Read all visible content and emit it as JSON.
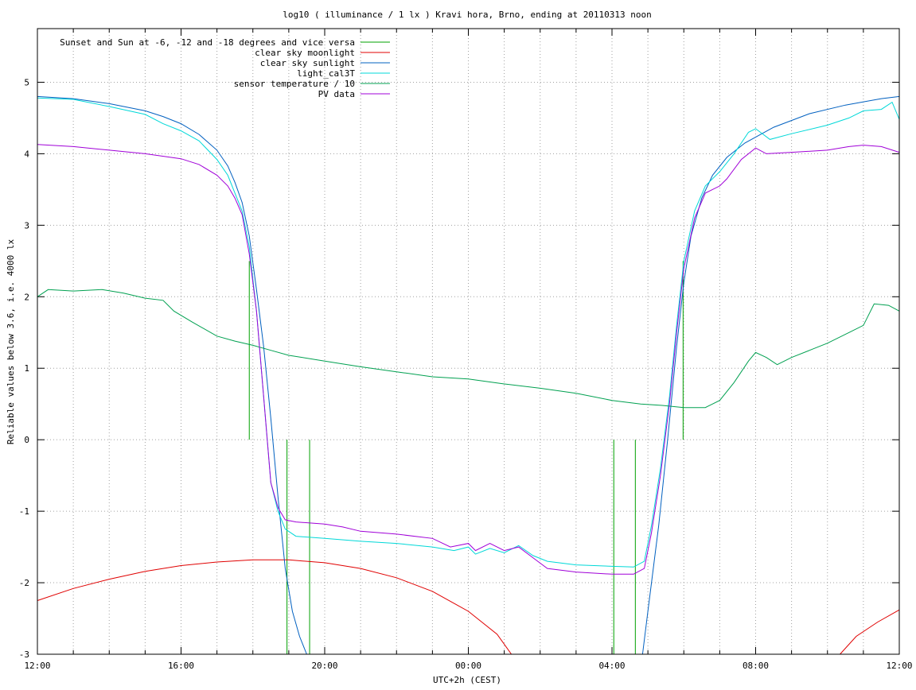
{
  "chart_data": {
    "type": "line",
    "title": "log10 ( illuminance / 1 lx ) Kravi hora, Brno, ending at 20110313 noon",
    "xlabel": "UTC+2h (CEST)",
    "ylabel": "Reliable values below 3.6, i.e. 4000 lx",
    "xlim": [
      0,
      24
    ],
    "ylim": [
      -3,
      5.75
    ],
    "grid": true,
    "legend_position": "top-left",
    "x_ticks": [
      {
        "x": 0,
        "label": "12:00"
      },
      {
        "x": 4,
        "label": "16:00"
      },
      {
        "x": 8,
        "label": "20:00"
      },
      {
        "x": 12,
        "label": "00:00"
      },
      {
        "x": 16,
        "label": "04:00"
      },
      {
        "x": 20,
        "label": "08:00"
      },
      {
        "x": 24,
        "label": "12:00"
      }
    ],
    "y_ticks": [
      {
        "y": -3,
        "label": "-3"
      },
      {
        "y": -2,
        "label": "-2"
      },
      {
        "y": -1,
        "label": "-1"
      },
      {
        "y": 0,
        "label": "0"
      },
      {
        "y": 1,
        "label": "1"
      },
      {
        "y": 2,
        "label": "2"
      },
      {
        "y": 3,
        "label": "3"
      },
      {
        "y": 4,
        "label": "4"
      },
      {
        "y": 5,
        "label": "5"
      }
    ],
    "x_minor_step": 1,
    "series": [
      {
        "name": "Sunset and Sun at -6, -12 and -18 degrees and vice versa",
        "color": "#00a000",
        "kind": "vertical-markers",
        "markers": [
          {
            "x": 5.9,
            "y_from": 0,
            "y_to": 2.5
          },
          {
            "x": 6.95,
            "y_from": 0,
            "y_to": -3
          },
          {
            "x": 7.58,
            "y_from": 0,
            "y_to": -3
          },
          {
            "x": 16.05,
            "y_from": 0,
            "y_to": -3
          },
          {
            "x": 16.65,
            "y_from": 0,
            "y_to": -3
          },
          {
            "x": 17.98,
            "y_from": 0,
            "y_to": 2.5
          }
        ]
      },
      {
        "name": "clear sky moonlight",
        "color": "#e00000",
        "segments": [
          [
            [
              0,
              -2.25
            ],
            [
              1,
              -2.08
            ],
            [
              2,
              -1.95
            ],
            [
              3,
              -1.84
            ],
            [
              4,
              -1.76
            ],
            [
              5,
              -1.71
            ],
            [
              6,
              -1.68
            ],
            [
              7,
              -1.68
            ],
            [
              8,
              -1.72
            ],
            [
              9,
              -1.8
            ],
            [
              10,
              -1.93
            ],
            [
              11,
              -2.12
            ],
            [
              12,
              -2.4
            ],
            [
              12.8,
              -2.72
            ],
            [
              13.2,
              -3.0
            ]
          ],
          [
            [
              22.35,
              -3.0
            ],
            [
              22.8,
              -2.75
            ],
            [
              23.4,
              -2.55
            ],
            [
              24,
              -2.38
            ]
          ]
        ]
      },
      {
        "name": "clear sky sunlight",
        "color": "#0060c0",
        "segments": [
          [
            [
              0,
              4.8
            ],
            [
              1,
              4.77
            ],
            [
              2,
              4.7
            ],
            [
              3,
              4.6
            ],
            [
              3.5,
              4.52
            ],
            [
              4,
              4.42
            ],
            [
              4.5,
              4.27
            ],
            [
              5,
              4.05
            ],
            [
              5.3,
              3.83
            ],
            [
              5.5,
              3.6
            ],
            [
              5.7,
              3.32
            ],
            [
              5.9,
              2.85
            ],
            [
              6.1,
              2.1
            ],
            [
              6.3,
              1.3
            ],
            [
              6.5,
              0.3
            ],
            [
              6.7,
              -0.8
            ],
            [
              6.9,
              -1.8
            ],
            [
              7.1,
              -2.4
            ],
            [
              7.3,
              -2.75
            ],
            [
              7.5,
              -3.0
            ]
          ],
          [
            [
              16.85,
              -3.0
            ],
            [
              17.0,
              -2.4
            ],
            [
              17.3,
              -1.2
            ],
            [
              17.55,
              0.0
            ],
            [
              17.8,
              1.3
            ],
            [
              18.0,
              2.2
            ],
            [
              18.2,
              2.85
            ],
            [
              18.5,
              3.38
            ],
            [
              18.8,
              3.7
            ],
            [
              19.2,
              3.95
            ],
            [
              19.7,
              4.15
            ],
            [
              20.5,
              4.37
            ],
            [
              21.5,
              4.56
            ],
            [
              22.5,
              4.68
            ],
            [
              23.5,
              4.77
            ],
            [
              24,
              4.8
            ]
          ]
        ]
      },
      {
        "name": "light_cal3T",
        "color": "#00d8d8",
        "segments": [
          [
            [
              0,
              4.78
            ],
            [
              1,
              4.76
            ],
            [
              2,
              4.66
            ],
            [
              3,
              4.55
            ],
            [
              3.5,
              4.42
            ],
            [
              4,
              4.32
            ],
            [
              4.5,
              4.18
            ],
            [
              5,
              3.92
            ],
            [
              5.3,
              3.7
            ],
            [
              5.5,
              3.45
            ],
            [
              5.7,
              3.2
            ],
            [
              5.9,
              2.7
            ],
            [
              6.1,
              1.8
            ],
            [
              6.3,
              0.6
            ],
            [
              6.5,
              -0.6
            ],
            [
              6.7,
              -1.0
            ],
            [
              6.9,
              -1.25
            ],
            [
              7.2,
              -1.35
            ],
            [
              8,
              -1.38
            ],
            [
              9,
              -1.42
            ],
            [
              10,
              -1.45
            ],
            [
              11,
              -1.5
            ],
            [
              11.6,
              -1.55
            ],
            [
              12,
              -1.5
            ],
            [
              12.2,
              -1.6
            ],
            [
              12.6,
              -1.52
            ],
            [
              13,
              -1.58
            ],
            [
              13.4,
              -1.48
            ],
            [
              13.8,
              -1.62
            ],
            [
              14.2,
              -1.7
            ],
            [
              15,
              -1.75
            ],
            [
              16,
              -1.77
            ],
            [
              16.6,
              -1.78
            ],
            [
              16.9,
              -1.7
            ],
            [
              17.1,
              -1.2
            ],
            [
              17.35,
              -0.4
            ],
            [
              17.6,
              0.6
            ],
            [
              17.8,
              1.6
            ],
            [
              18.0,
              2.5
            ],
            [
              18.3,
              3.2
            ],
            [
              18.6,
              3.55
            ],
            [
              19,
              3.75
            ],
            [
              19.4,
              4.0
            ],
            [
              19.8,
              4.3
            ],
            [
              20,
              4.35
            ],
            [
              20.4,
              4.2
            ],
            [
              21,
              4.28
            ],
            [
              22,
              4.4
            ],
            [
              22.6,
              4.5
            ],
            [
              23,
              4.6
            ],
            [
              23.5,
              4.62
            ],
            [
              23.8,
              4.72
            ],
            [
              24,
              4.48
            ]
          ]
        ]
      },
      {
        "name": "sensor temperature / 10",
        "color": "#00a050",
        "segments": [
          [
            [
              0,
              2.0
            ],
            [
              0.3,
              2.1
            ],
            [
              1,
              2.08
            ],
            [
              1.8,
              2.1
            ],
            [
              2.4,
              2.05
            ],
            [
              3,
              1.98
            ],
            [
              3.5,
              1.95
            ],
            [
              3.8,
              1.8
            ],
            [
              4.3,
              1.65
            ],
            [
              5,
              1.45
            ],
            [
              5.5,
              1.38
            ],
            [
              6,
              1.32
            ],
            [
              6.5,
              1.25
            ],
            [
              7,
              1.18
            ],
            [
              8,
              1.1
            ],
            [
              9,
              1.02
            ],
            [
              10,
              0.95
            ],
            [
              11,
              0.88
            ],
            [
              12,
              0.85
            ],
            [
              13,
              0.78
            ],
            [
              14,
              0.72
            ],
            [
              15,
              0.65
            ],
            [
              16,
              0.55
            ],
            [
              16.8,
              0.5
            ],
            [
              17.4,
              0.48
            ],
            [
              18,
              0.45
            ],
            [
              18.6,
              0.45
            ],
            [
              19,
              0.55
            ],
            [
              19.4,
              0.8
            ],
            [
              19.8,
              1.1
            ],
            [
              20,
              1.22
            ],
            [
              20.3,
              1.15
            ],
            [
              20.6,
              1.05
            ],
            [
              21,
              1.15
            ],
            [
              21.5,
              1.25
            ],
            [
              22,
              1.35
            ],
            [
              22.6,
              1.5
            ],
            [
              23,
              1.6
            ],
            [
              23.3,
              1.9
            ],
            [
              23.7,
              1.88
            ],
            [
              24,
              1.8
            ]
          ]
        ]
      },
      {
        "name": "PV data",
        "color": "#a000d8",
        "segments": [
          [
            [
              0,
              4.13
            ],
            [
              1,
              4.1
            ],
            [
              2,
              4.05
            ],
            [
              3,
              4.0
            ],
            [
              4,
              3.93
            ],
            [
              4.5,
              3.85
            ],
            [
              5,
              3.7
            ],
            [
              5.3,
              3.55
            ],
            [
              5.5,
              3.38
            ],
            [
              5.7,
              3.15
            ],
            [
              5.9,
              2.6
            ],
            [
              6.1,
              1.8
            ],
            [
              6.3,
              0.6
            ],
            [
              6.5,
              -0.6
            ],
            [
              6.7,
              -0.95
            ],
            [
              6.9,
              -1.12
            ],
            [
              7.2,
              -1.15
            ],
            [
              8,
              -1.18
            ],
            [
              8.5,
              -1.22
            ],
            [
              9,
              -1.28
            ],
            [
              10,
              -1.32
            ],
            [
              11,
              -1.38
            ],
            [
              11.5,
              -1.5
            ],
            [
              12,
              -1.45
            ],
            [
              12.2,
              -1.55
            ],
            [
              12.6,
              -1.45
            ],
            [
              13,
              -1.55
            ],
            [
              13.4,
              -1.5
            ],
            [
              13.8,
              -1.65
            ],
            [
              14.2,
              -1.8
            ],
            [
              15,
              -1.85
            ],
            [
              16,
              -1.88
            ],
            [
              16.6,
              -1.88
            ],
            [
              16.9,
              -1.8
            ],
            [
              17.1,
              -1.3
            ],
            [
              17.35,
              -0.5
            ],
            [
              17.6,
              0.5
            ],
            [
              17.8,
              1.5
            ],
            [
              18.0,
              2.4
            ],
            [
              18.3,
              3.1
            ],
            [
              18.6,
              3.45
            ],
            [
              19,
              3.55
            ],
            [
              19.2,
              3.65
            ],
            [
              19.6,
              3.92
            ],
            [
              20,
              4.08
            ],
            [
              20.3,
              4.0
            ],
            [
              21,
              4.02
            ],
            [
              22,
              4.05
            ],
            [
              22.6,
              4.1
            ],
            [
              23,
              4.12
            ],
            [
              23.5,
              4.1
            ],
            [
              24,
              4.02
            ]
          ]
        ]
      }
    ]
  }
}
